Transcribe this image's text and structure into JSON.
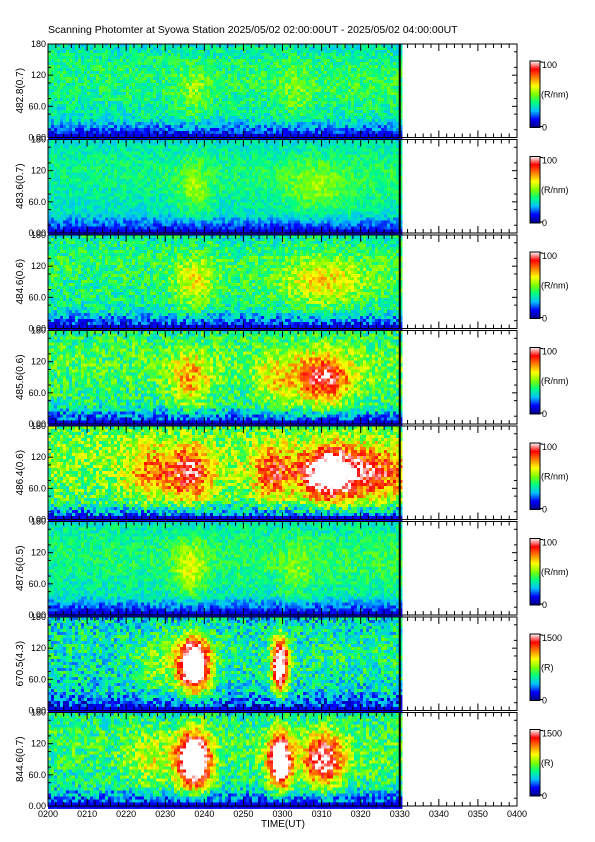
{
  "title": "Scanning Photomter at Syowa Station 2025/05/02 02:00:00UT - 2025/05/02 04:00:00UT",
  "chart_data": {
    "type": "heatmap",
    "title": "Scanning Photomter at Syowa Station 2025/05/02 02:00:00UT - 2025/05/02 04:00:00UT",
    "xlabel": "TIME(UT)",
    "x_ticks": [
      "0200",
      "0210",
      "0220",
      "0230",
      "0240",
      "0250",
      "0300",
      "0310",
      "0320",
      "0330",
      "0340",
      "0350",
      "0400"
    ],
    "data_end": "0330",
    "y_ticks": [
      "0.00",
      "60.0",
      "120",
      "180"
    ],
    "ylim": [
      0,
      180
    ],
    "colormap": [
      "#000080",
      "#0000ff",
      "#00c0ff",
      "#00ff80",
      "#80ff00",
      "#ffff00",
      "#ff8000",
      "#ff0000",
      "#ffffff"
    ],
    "panels": [
      {
        "ylabel": "482.8(0.7)",
        "cb_max": "100",
        "cb_min": "0",
        "cb_unit": "(R/nm)",
        "base": 0.42,
        "scale": 0.18,
        "events": [
          {
            "t": "0237",
            "w": 4,
            "a": 0.08
          },
          {
            "t": "0303",
            "w": 4,
            "a": 0.06
          }
        ]
      },
      {
        "ylabel": "483.6(0.7)",
        "cb_max": "100",
        "cb_min": "0",
        "cb_unit": "(R/nm)",
        "base": 0.4,
        "scale": 0.14,
        "events": [
          {
            "t": "0237",
            "w": 4,
            "a": 0.1
          },
          {
            "t": "0308",
            "w": 8,
            "a": 0.08
          }
        ]
      },
      {
        "ylabel": "484.6(0.6)",
        "cb_max": "100",
        "cb_min": "0",
        "cb_unit": "(R/nm)",
        "base": 0.44,
        "scale": 0.22,
        "events": [
          {
            "t": "0237",
            "w": 5,
            "a": 0.14
          },
          {
            "t": "0310",
            "w": 10,
            "a": 0.14
          }
        ]
      },
      {
        "ylabel": "485.6(0.6)",
        "cb_max": "100",
        "cb_min": "0",
        "cb_unit": "(R/nm)",
        "base": 0.48,
        "scale": 0.26,
        "events": [
          {
            "t": "0236",
            "w": 5,
            "a": 0.18
          },
          {
            "t": "0258",
            "w": 5,
            "a": 0.12
          },
          {
            "t": "0310",
            "w": 7,
            "a": 0.3
          }
        ]
      },
      {
        "ylabel": "486.4(0.6)",
        "cb_max": "100",
        "cb_min": "0",
        "cb_unit": "(R/nm)",
        "base": 0.55,
        "scale": 0.3,
        "events": [
          {
            "t": "0226",
            "w": 6,
            "a": 0.18
          },
          {
            "t": "0236",
            "w": 5,
            "a": 0.28
          },
          {
            "t": "0257",
            "w": 5,
            "a": 0.22
          },
          {
            "t": "0311",
            "w": 7,
            "a": 0.4
          },
          {
            "t": "0322",
            "w": 10,
            "a": 0.22
          }
        ]
      },
      {
        "ylabel": "487.6(0.5)",
        "cb_max": "100",
        "cb_min": "0",
        "cb_unit": "(R/nm)",
        "base": 0.42,
        "scale": 0.16,
        "events": [
          {
            "t": "0236",
            "w": 4,
            "a": 0.14
          },
          {
            "t": "0303",
            "w": 4,
            "a": 0.06
          }
        ]
      },
      {
        "ylabel": "670.5(4.3)",
        "cb_max": "1500",
        "cb_min": "0",
        "cb_unit": "(R)",
        "base": 0.38,
        "scale": 0.28,
        "events": [
          {
            "t": "0237",
            "w": 4,
            "a": 0.65
          },
          {
            "t": "0259",
            "w": 2,
            "a": 0.55
          },
          {
            "t": "0228",
            "w": 5,
            "a": 0.1
          }
        ]
      },
      {
        "ylabel": "844.6(0.7)",
        "cb_max": "1500",
        "cb_min": "0",
        "cb_unit": "(R)",
        "base": 0.45,
        "scale": 0.28,
        "events": [
          {
            "t": "0237",
            "w": 4,
            "a": 0.65
          },
          {
            "t": "0259",
            "w": 3,
            "a": 0.55
          },
          {
            "t": "0310",
            "w": 5,
            "a": 0.38
          },
          {
            "t": "0226",
            "w": 6,
            "a": 0.12
          }
        ]
      }
    ]
  }
}
